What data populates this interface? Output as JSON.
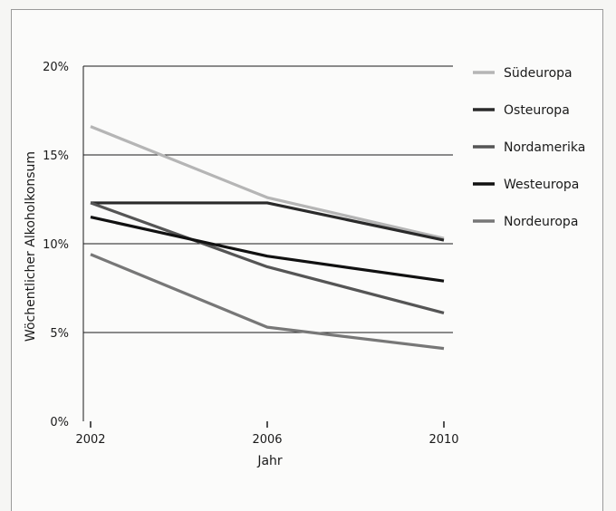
{
  "chart_data": {
    "type": "line",
    "xlabel": "Jahr",
    "ylabel": "Wöchentlicher Alkoholkonsum",
    "x": [
      2002,
      2006,
      2010
    ],
    "x_tick_labels": [
      "2002",
      "2006",
      "2010"
    ],
    "ylim": [
      0,
      20
    ],
    "y_ticks": [
      0,
      5,
      10,
      15,
      20
    ],
    "y_tick_labels": [
      "0%",
      "5%",
      "10%",
      "15%",
      "20%"
    ],
    "grid": "horizontal",
    "legend_position": "right",
    "series": [
      {
        "name": "Südeuropa",
        "color": "#b5b5b5",
        "values": [
          16.6,
          12.6,
          10.3
        ]
      },
      {
        "name": "Osteuropa",
        "color": "#2a2a2a",
        "values": [
          12.3,
          12.3,
          10.2
        ]
      },
      {
        "name": "Nordamerika",
        "color": "#555555",
        "values": [
          12.3,
          8.7,
          6.1
        ]
      },
      {
        "name": "Westeuropa",
        "color": "#111111",
        "values": [
          11.5,
          9.3,
          7.9
        ]
      },
      {
        "name": "Nordeuropa",
        "color": "#777777",
        "values": [
          9.4,
          5.3,
          4.1
        ]
      }
    ]
  }
}
